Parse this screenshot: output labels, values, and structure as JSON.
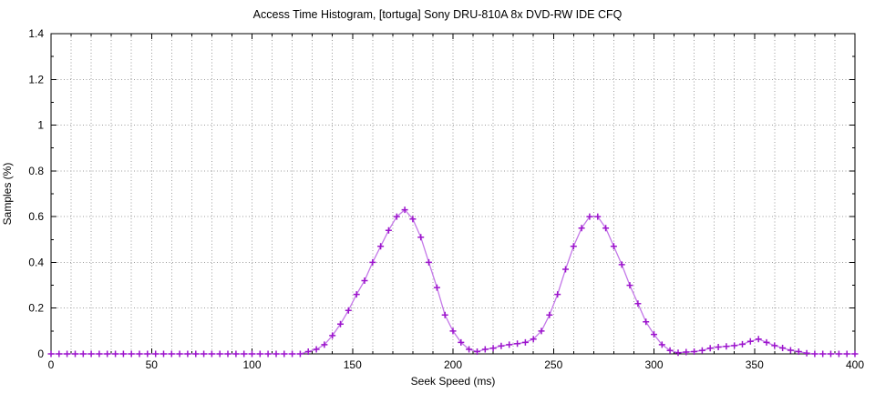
{
  "window": {
    "background": "#ffffff"
  },
  "chart_data": {
    "type": "line",
    "title": "Access Time Histogram, [tortuga] Sony DRU-810A 8x DVD-RW IDE CFQ",
    "xlabel": "Seek Speed (ms)",
    "ylabel": "Samples (%)",
    "xlim": [
      0,
      400
    ],
    "ylim": [
      0,
      1.4
    ],
    "x_major_ticks": [
      0,
      50,
      100,
      150,
      200,
      250,
      300,
      350,
      400
    ],
    "x_major_tick_labels": [
      "0",
      "50",
      "100",
      "150",
      "200",
      "250",
      "300",
      "350",
      "400"
    ],
    "x_minor_tick_step": 10,
    "y_major_ticks": [
      0,
      0.2,
      0.4,
      0.6,
      0.8,
      1.0,
      1.2,
      1.4
    ],
    "y_major_tick_labels": [
      "0",
      "0.2",
      "0.4",
      "0.6",
      "0.8",
      "1",
      "1.2",
      "1.4"
    ],
    "y_minor_tick_step": 0.1,
    "grid": {
      "style": "dotted",
      "color": "#9b9b9b",
      "x_step": 10,
      "y_step": 0.2
    },
    "legend_position": "none",
    "colors": {
      "line": "#c478e8",
      "marker": "#9c14cc",
      "axis": "#000000",
      "text": "#000000"
    },
    "series": [
      {
        "name": "samples",
        "marker": "plus",
        "x": [
          0,
          4,
          8,
          12,
          16,
          20,
          24,
          28,
          32,
          36,
          40,
          44,
          48,
          52,
          56,
          60,
          64,
          68,
          72,
          76,
          80,
          84,
          88,
          92,
          96,
          100,
          104,
          108,
          112,
          116,
          120,
          124,
          128,
          132,
          136,
          140,
          144,
          148,
          152,
          156,
          160,
          164,
          168,
          172,
          176,
          180,
          184,
          188,
          192,
          196,
          200,
          204,
          208,
          212,
          216,
          220,
          224,
          228,
          232,
          236,
          240,
          244,
          248,
          252,
          256,
          260,
          264,
          268,
          272,
          276,
          280,
          284,
          288,
          292,
          296,
          300,
          304,
          308,
          312,
          316,
          320,
          324,
          328,
          332,
          336,
          340,
          344,
          348,
          352,
          356,
          360,
          364,
          368,
          372,
          376,
          380,
          384,
          388,
          392,
          396,
          400
        ],
        "y": [
          0,
          0,
          0,
          0,
          0,
          0,
          0,
          0,
          0,
          0,
          0,
          0,
          0,
          0,
          0,
          0,
          0,
          0,
          0,
          0,
          0,
          0,
          0,
          0,
          0,
          0,
          0,
          0,
          0,
          0,
          0,
          0,
          0.01,
          0.02,
          0.04,
          0.08,
          0.13,
          0.19,
          0.26,
          0.32,
          0.4,
          0.47,
          0.54,
          0.6,
          0.63,
          0.59,
          0.51,
          0.4,
          0.29,
          0.17,
          0.1,
          0.05,
          0.02,
          0.01,
          0.02,
          0.025,
          0.035,
          0.04,
          0.045,
          0.05,
          0.065,
          0.1,
          0.17,
          0.26,
          0.37,
          0.47,
          0.55,
          0.6,
          0.6,
          0.55,
          0.47,
          0.39,
          0.3,
          0.22,
          0.14,
          0.085,
          0.04,
          0.015,
          0.005,
          0.008,
          0.01,
          0.015,
          0.025,
          0.03,
          0.033,
          0.036,
          0.042,
          0.055,
          0.065,
          0.05,
          0.036,
          0.026,
          0.016,
          0.01,
          0.003,
          0,
          0,
          0,
          0,
          0,
          0
        ]
      }
    ]
  }
}
